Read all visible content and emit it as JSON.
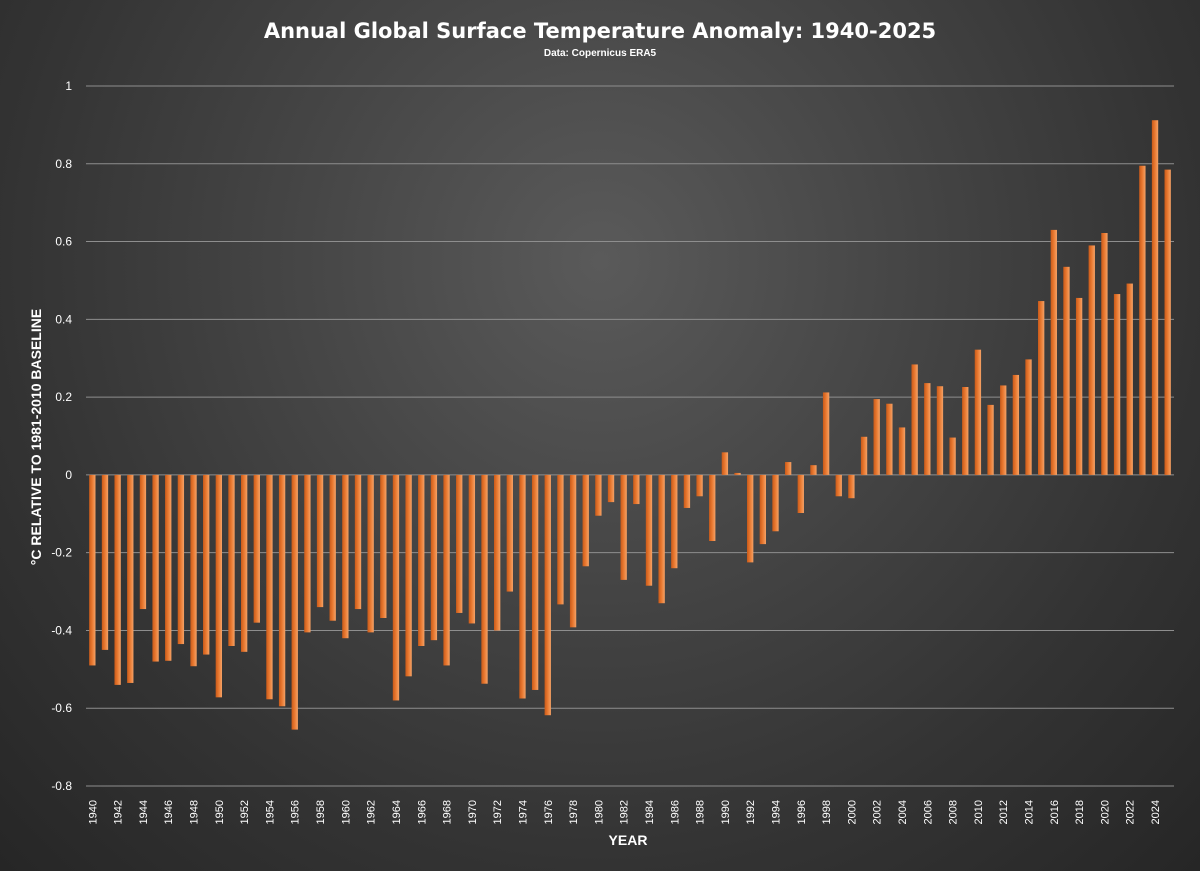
{
  "chart_data": {
    "type": "bar",
    "title": "Annual Global Surface Temperature Anomaly: 1940-2025",
    "subtitle": "Data: Copernicus ERA5",
    "xlabel": "YEAR",
    "ylabel": "°C RELATIVE TO 1981-2010 BASELINE",
    "ylim": [
      -0.8,
      1.0
    ],
    "yticks": [
      -0.8,
      -0.6,
      -0.4,
      -0.2,
      0,
      0.2,
      0.4,
      0.6,
      0.8,
      1
    ],
    "ytick_labels": [
      "-0.8",
      "-0.6",
      "-0.4",
      "-0.2",
      "0",
      "0.2",
      "0.4",
      "0.6",
      "0.8",
      "1"
    ],
    "xtick_labels": [
      "1940",
      "1942",
      "1944",
      "1946",
      "1948",
      "1950",
      "1952",
      "1954",
      "1956",
      "1958",
      "1960",
      "1962",
      "1964",
      "1966",
      "1968",
      "1970",
      "1972",
      "1974",
      "1976",
      "1978",
      "1980",
      "1982",
      "1984",
      "1986",
      "1988",
      "1990",
      "1992",
      "1994",
      "1996",
      "1998",
      "2000",
      "2002",
      "2004",
      "2006",
      "2008",
      "2010",
      "2012",
      "2014",
      "2016",
      "2018",
      "2020",
      "2022",
      "2024"
    ],
    "grid": true,
    "legend": false,
    "bar_color": "#e8772e",
    "categories": [
      "1940",
      "1941",
      "1942",
      "1943",
      "1944",
      "1945",
      "1946",
      "1947",
      "1948",
      "1949",
      "1950",
      "1951",
      "1952",
      "1953",
      "1954",
      "1955",
      "1956",
      "1957",
      "1958",
      "1959",
      "1960",
      "1961",
      "1962",
      "1963",
      "1964",
      "1965",
      "1966",
      "1967",
      "1968",
      "1969",
      "1970",
      "1971",
      "1972",
      "1973",
      "1974",
      "1975",
      "1976",
      "1977",
      "1978",
      "1979",
      "1980",
      "1981",
      "1982",
      "1983",
      "1984",
      "1985",
      "1986",
      "1987",
      "1988",
      "1989",
      "1990",
      "1991",
      "1992",
      "1993",
      "1994",
      "1995",
      "1996",
      "1997",
      "1998",
      "1999",
      "2000",
      "2001",
      "2002",
      "2003",
      "2004",
      "2005",
      "2006",
      "2007",
      "2008",
      "2009",
      "2010",
      "2011",
      "2012",
      "2013",
      "2014",
      "2015",
      "2016",
      "2017",
      "2018",
      "2019",
      "2020",
      "2021",
      "2022",
      "2023",
      "2024",
      "2025"
    ],
    "values": [
      -0.49,
      -0.45,
      -0.54,
      -0.535,
      -0.345,
      -0.48,
      -0.478,
      -0.435,
      -0.492,
      -0.462,
      -0.572,
      -0.44,
      -0.455,
      -0.38,
      -0.577,
      -0.595,
      -0.655,
      -0.405,
      -0.34,
      -0.375,
      -0.42,
      -0.345,
      -0.405,
      -0.368,
      -0.58,
      -0.518,
      -0.44,
      -0.425,
      -0.49,
      -0.355,
      -0.382,
      -0.537,
      -0.4,
      -0.3,
      -0.575,
      -0.553,
      -0.618,
      -0.333,
      -0.392,
      -0.235,
      -0.105,
      -0.07,
      -0.27,
      -0.075,
      -0.285,
      -0.33,
      -0.24,
      -0.085,
      -0.055,
      -0.17,
      0.058,
      0.005,
      -0.225,
      -0.178,
      -0.145,
      0.033,
      -0.098,
      0.025,
      0.212,
      -0.055,
      -0.06,
      0.098,
      0.195,
      0.183,
      0.122,
      0.284,
      0.236,
      0.228,
      0.096,
      0.226,
      0.322,
      0.18,
      0.23,
      0.257,
      0.297,
      0.447,
      0.63,
      0.535,
      0.455,
      0.59,
      0.622,
      0.465,
      0.492,
      0.795,
      0.912,
      0.785
    ]
  }
}
